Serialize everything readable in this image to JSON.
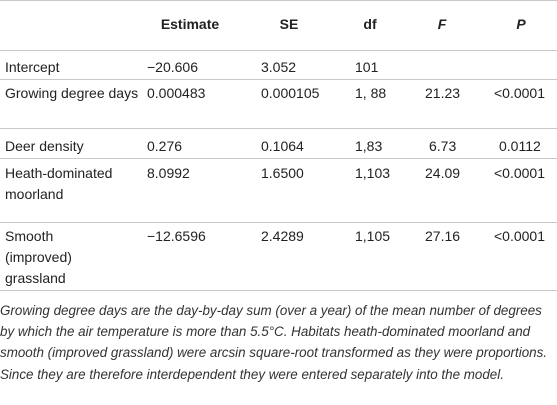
{
  "headers": [
    "",
    "Estimate",
    "SE",
    "df",
    "F",
    "P"
  ],
  "rows": [
    {
      "label": "Intercept",
      "estimate": "−20.606",
      "se": "3.052",
      "df": "101",
      "f": "",
      "p": ""
    },
    {
      "label": "Growing degree days",
      "estimate": "0.000483",
      "se": "0.000105",
      "df": "1, 88",
      "f": "21.23",
      "p": "<0.0001"
    },
    {
      "label": "Deer density",
      "estimate": "0.276",
      "se": "0.1064",
      "df": "1,83",
      "f": "6.73",
      "p": "0.0112"
    },
    {
      "label": "Heath-dominated moorland",
      "estimate": "8.0992",
      "se": "1.6500",
      "df": "1,103",
      "f": "24.09",
      "p": "<0.0001"
    },
    {
      "label": "Smooth (improved) grassland",
      "estimate": "−12.6596",
      "se": "2.4289",
      "df": "1,105",
      "f": "27.16",
      "p": "<0.0001"
    }
  ],
  "footnote": "Growing degree days are the day-by-day sum (over a year) of the mean number of degrees by which the air temperature is more than 5.5°C. Habitats heath-dominated moorland and smooth (improved grassland) were arcsin square-root transformed as they were proportions. Since they are therefore interdependent they were entered separately into the model."
}
